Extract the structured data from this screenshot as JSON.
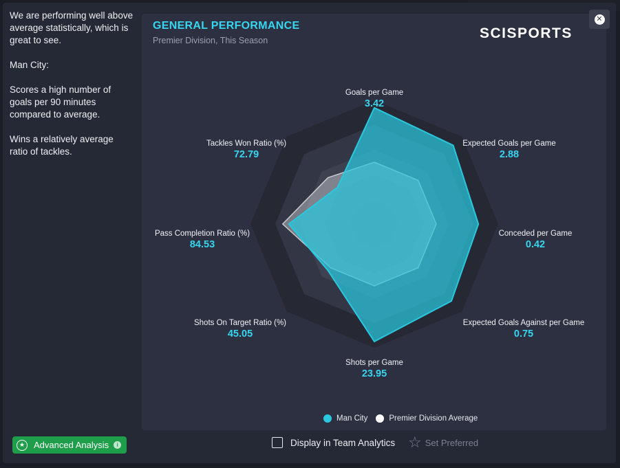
{
  "sidebar": {
    "paragraphs": [
      "We are performing well above average statistically, which is great to see.",
      "Man City:",
      "Scores a high number of goals per 90 minutes compared to average.",
      "Wins a relatively average ratio of tackles."
    ]
  },
  "panel": {
    "title": "GENERAL PERFORMANCE",
    "subtitle": "Premier Division, This Season",
    "logo": "SCISPORTS",
    "close_icon": "close-icon"
  },
  "chart_data": {
    "type": "radar",
    "axes": [
      {
        "name": "Goals per Game",
        "value": "3.42"
      },
      {
        "name": "Expected Goals per Game",
        "value": "2.88"
      },
      {
        "name": "Conceded per Game",
        "value": "0.42"
      },
      {
        "name": "Expected Goals Against per Game",
        "value": "0.75"
      },
      {
        "name": "Shots per Game",
        "value": "23.95"
      },
      {
        "name": "Shots On Target Ratio (%)",
        "value": "45.05"
      },
      {
        "name": "Pass Completion Ratio (%)",
        "value": "84.53"
      },
      {
        "name": "Tackles Won Ratio (%)",
        "value": "72.79"
      }
    ],
    "scale": [
      0,
      1
    ],
    "series": [
      {
        "name": "Man City",
        "color": "#29c8df",
        "values": [
          0.94,
          0.9,
          0.84,
          0.88,
          0.95,
          0.53,
          0.69,
          0.42
        ]
      },
      {
        "name": "Premier Division Average",
        "color": "#ffffff",
        "values": [
          0.5,
          0.5,
          0.5,
          0.5,
          0.5,
          0.5,
          0.74,
          0.53
        ]
      }
    ]
  },
  "footer": {
    "advanced_label": "Advanced Analysis",
    "advanced_color": "#1e9e4a",
    "display_label": "Display in Team Analytics",
    "display_checked": false,
    "preferred_label": "Set Preferred"
  }
}
